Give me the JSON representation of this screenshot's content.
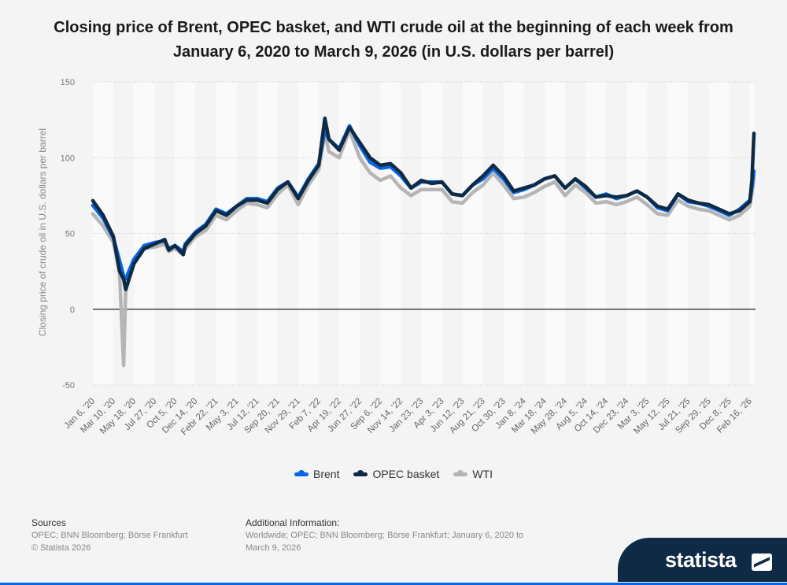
{
  "title": "Closing price of Brent, OPEC basket, and WTI crude oil at the beginning of each week from January 6, 2020 to March 9, 2026 (in U.S. dollars per barrel)",
  "chart_data": {
    "type": "line",
    "title": "Closing price of Brent, OPEC basket, and WTI crude oil at the beginning of each week from January 6, 2020 to March 9, 2026 (in U.S. dollars per barrel)",
    "xlabel": "",
    "ylabel": "Closing price of crude oil in U.S. dollars per barrel",
    "ylim": [
      -50,
      150
    ],
    "yticks": [
      "150",
      "100",
      "50",
      "0",
      "-50"
    ],
    "grid": true,
    "legend_position": "bottom",
    "xtick_labels": [
      "Jan 6, '20",
      "Mar 10, '20",
      "May 18, '20",
      "Jul 27, '20",
      "Oct 5, '20",
      "Dec 14, '20",
      "Febr 22, '21",
      "May 3, '21",
      "Jul 12, '21",
      "Sep 20, '21",
      "Nov 29, '21",
      "Feb 7, '22",
      "Apr 19, '22",
      "Jun 27, '22",
      "Sep 6, '22",
      "Nov 14, '22",
      "Jan 23, '23",
      "Apr 3, '23",
      "Jun 12, '23",
      "Aug 21, '23",
      "Oct 30, '23",
      "Jan 8, '24",
      "Mar 18, '24",
      "May 28, '24",
      "Aug 5, '24",
      "Oct 14, '24",
      "Dec 23, '24",
      "Mar 3, '25",
      "May 12, '25",
      "Jul 21, '25",
      "Sep 29, '25",
      "Dec 8, '25",
      "Feb 16, '26"
    ],
    "x": [
      "2020-01-06",
      "2020-02-10",
      "2020-03-16",
      "2020-04-06",
      "2020-04-20",
      "2020-04-27",
      "2020-05-25",
      "2020-06-29",
      "2020-08-03",
      "2020-09-07",
      "2020-09-21",
      "2020-10-12",
      "2020-11-09",
      "2020-11-16",
      "2020-12-21",
      "2021-01-25",
      "2021-03-01",
      "2021-04-05",
      "2021-05-10",
      "2021-06-14",
      "2021-07-19",
      "2021-08-23",
      "2021-09-27",
      "2021-11-01",
      "2021-12-06",
      "2022-01-10",
      "2022-02-14",
      "2022-03-07",
      "2022-03-21",
      "2022-04-25",
      "2022-05-30",
      "2022-07-04",
      "2022-08-08",
      "2022-09-12",
      "2022-10-17",
      "2022-11-21",
      "2022-12-26",
      "2023-01-30",
      "2023-03-06",
      "2023-04-10",
      "2023-05-15",
      "2023-06-19",
      "2023-07-24",
      "2023-08-28",
      "2023-10-02",
      "2023-11-06",
      "2023-12-11",
      "2024-01-15",
      "2024-02-19",
      "2024-03-25",
      "2024-04-29",
      "2024-06-03",
      "2024-07-08",
      "2024-08-12",
      "2024-09-16",
      "2024-10-21",
      "2024-11-25",
      "2024-12-30",
      "2025-02-03",
      "2025-03-10",
      "2025-04-14",
      "2025-05-19",
      "2025-06-23",
      "2025-07-28",
      "2025-09-01",
      "2025-10-06",
      "2025-11-10",
      "2025-12-15",
      "2026-01-19",
      "2026-02-23",
      "2026-03-02",
      "2026-03-09"
    ],
    "series": [
      {
        "name": "Brent",
        "color": "#0666e5",
        "values": [
          68.5,
          60,
          47,
          32,
          22,
          20,
          33,
          42,
          44,
          45,
          40,
          42,
          38,
          43,
          51,
          56,
          66,
          63,
          68,
          73,
          73,
          71,
          80,
          84,
          74,
          86,
          96,
          118,
          112,
          106,
          121,
          108,
          97,
          93,
          94,
          88,
          80,
          84,
          84,
          84,
          76,
          75,
          82,
          86,
          93,
          86,
          77,
          79,
          82,
          86,
          88,
          80,
          86,
          80,
          74,
          76,
          73,
          75,
          78,
          74,
          67,
          65,
          76,
          71,
          70,
          68,
          65,
          62,
          66,
          72,
          80,
          91
        ]
      },
      {
        "name": "OPEC basket",
        "color": "#0f2a44",
        "values": [
          71.6,
          62,
          48,
          25,
          20,
          13,
          30,
          40,
          43,
          46,
          39,
          42,
          36,
          42,
          50,
          55,
          65,
          62,
          68,
          72,
          72,
          70,
          79,
          84,
          73,
          85,
          95,
          126,
          112,
          105,
          120,
          110,
          100,
          95,
          96,
          90,
          80,
          85,
          83,
          84,
          76,
          75,
          82,
          88,
          95,
          88,
          78,
          80,
          82,
          86,
          88,
          80,
          86,
          81,
          74,
          75,
          74,
          75,
          78,
          74,
          68,
          66,
          76,
          72,
          70,
          69,
          66,
          63,
          65,
          71,
          85,
          116
        ]
      },
      {
        "name": "WTI",
        "color": "#b5b5b5",
        "values": [
          63,
          55,
          44,
          24,
          -37,
          12,
          32,
          40,
          41,
          43,
          38,
          40,
          36,
          40,
          48,
          52,
          62,
          59,
          65,
          70,
          69,
          67,
          76,
          82,
          69,
          82,
          92,
          116,
          104,
          100,
          118,
          100,
          90,
          85,
          88,
          80,
          75,
          79,
          79,
          79,
          71,
          70,
          77,
          82,
          90,
          82,
          73,
          74,
          77,
          81,
          84,
          75,
          82,
          77,
          70,
          71,
          69,
          71,
          74,
          69,
          63,
          62,
          72,
          68,
          66,
          65,
          62,
          59,
          62,
          68,
          76,
          88
        ]
      }
    ]
  },
  "legend": [
    "Brent",
    "OPEC basket",
    "WTI"
  ],
  "footer": {
    "sources_heading": "Sources",
    "sources_text": "OPEC; BNN Bloomberg; Börse Frankfurt",
    "copyright": "© Statista 2026",
    "additional_heading": "Additional Information:",
    "additional_text_1": "Worldwide; OPEC; BNN Bloomberg; Börse Frankfurt; January 6, 2020 to",
    "additional_text_2": "March 9, 2026"
  },
  "logo": "statista"
}
